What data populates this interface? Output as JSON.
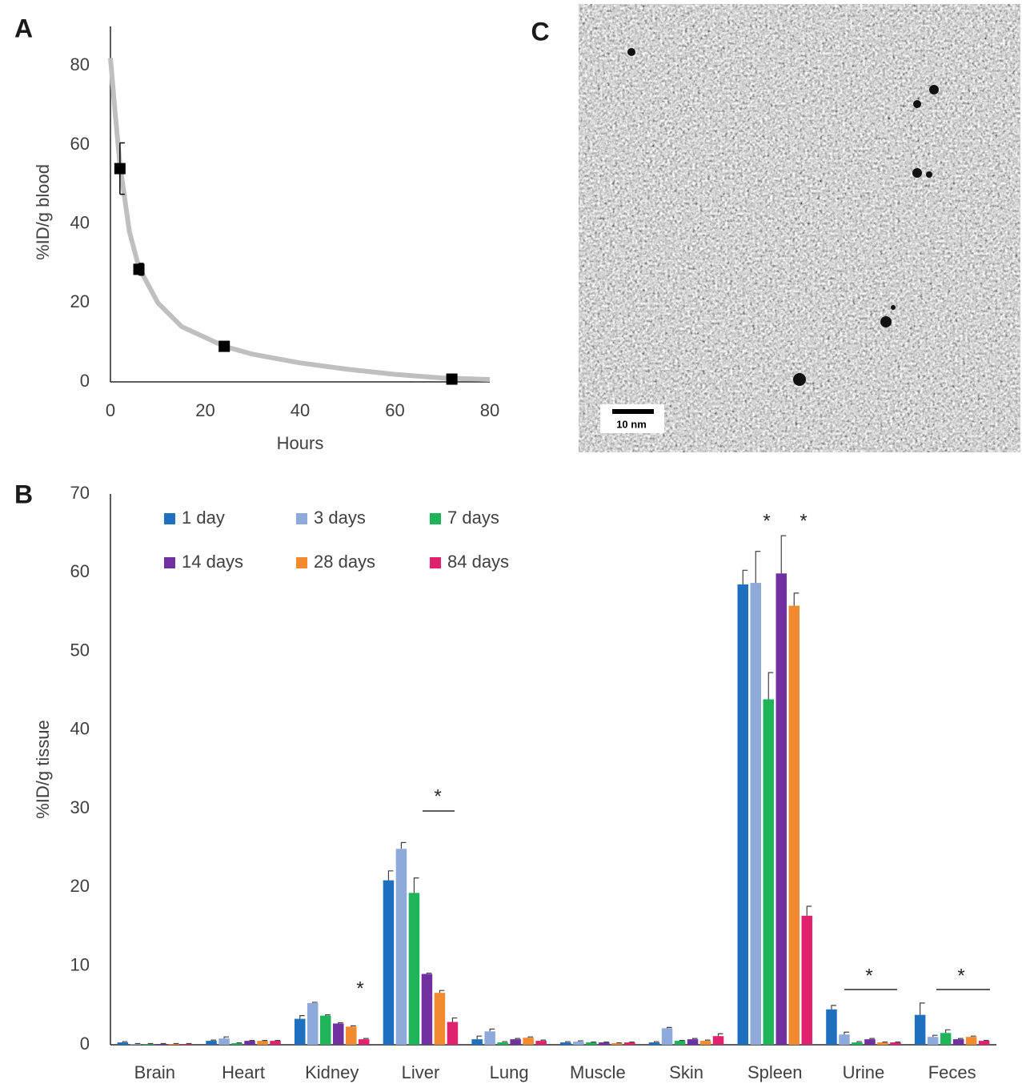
{
  "chart_data": [
    {
      "type": "scatter",
      "panel_label": "A",
      "xlabel": "Hours",
      "ylabel": "%ID/g  blood",
      "x": [
        2,
        6,
        24,
        72
      ],
      "values": [
        54,
        28.5,
        9,
        0.7
      ],
      "errors": [
        6.5,
        1.5,
        0.5,
        0.3
      ],
      "color": "#000000",
      "fit": {
        "x": [
          0,
          1,
          2,
          4,
          6,
          10,
          15,
          24,
          30,
          40,
          50,
          60,
          70,
          80
        ],
        "values": [
          82,
          68,
          55,
          38,
          29,
          20,
          14,
          9,
          7,
          4.8,
          3.2,
          1.9,
          1,
          0.6
        ],
        "color": "#bfbfbf"
      },
      "xlim": [
        0,
        80
      ],
      "xticks": [
        0,
        20,
        40,
        60,
        80
      ],
      "ylim": [
        0,
        90
      ],
      "yticks": [
        0,
        20,
        40,
        60,
        80
      ],
      "grid": false
    },
    {
      "type": "bar",
      "panel_label": "B",
      "ylabel": "%ID/g  tissue",
      "categories": [
        "Brain",
        "Heart",
        "Kidney",
        "Liver",
        "Lung",
        "Muscle",
        "Skin",
        "Spleen",
        "Urine",
        "Feces"
      ],
      "series": [
        {
          "name": "1 day",
          "color": "#1f6fbf",
          "values": [
            0.3,
            0.5,
            3.3,
            20.9,
            0.7,
            0.3,
            0.3,
            58.5,
            4.5,
            3.8
          ],
          "errors": [
            0.1,
            0.1,
            0.4,
            1.2,
            0.4,
            0.1,
            0.1,
            1.8,
            0.5,
            1.5
          ]
        },
        {
          "name": "3 days",
          "color": "#8eaadb",
          "values": [
            0.1,
            0.8,
            5.3,
            24.9,
            1.7,
            0.4,
            2.1,
            58.7,
            1.3,
            1.0
          ],
          "errors": [
            0.05,
            0.2,
            0.1,
            0.8,
            0.3,
            0.1,
            0.1,
            4,
            0.3,
            0.2
          ]
        },
        {
          "name": "7 days",
          "color": "#1fb35a",
          "values": [
            0.1,
            0.2,
            3.7,
            19.3,
            0.3,
            0.3,
            0.5,
            43.9,
            0.3,
            1.5
          ],
          "errors": [
            0.05,
            0.05,
            0.1,
            1.9,
            0.1,
            0.05,
            0.05,
            3.4,
            0.1,
            0.4
          ]
        },
        {
          "name": "14 days",
          "color": "#7030a0",
          "values": [
            0.1,
            0.5,
            2.7,
            9.0,
            0.7,
            0.3,
            0.7,
            59.9,
            0.7,
            0.7
          ],
          "errors": [
            0.05,
            0.05,
            0.1,
            0.1,
            0.1,
            0.05,
            0.1,
            4.8,
            0.1,
            0.1
          ]
        },
        {
          "name": "28 days",
          "color": "#f28a30",
          "values": [
            0.1,
            0.5,
            2.3,
            6.6,
            0.9,
            0.2,
            0.5,
            55.8,
            0.3,
            1.0
          ],
          "errors": [
            0.05,
            0.05,
            0.1,
            0.3,
            0.1,
            0.05,
            0.1,
            1.6,
            0.05,
            0.1
          ]
        },
        {
          "name": "84 days",
          "color": "#e0226e",
          "values": [
            0.1,
            0.5,
            0.7,
            2.9,
            0.5,
            0.3,
            1.1,
            16.4,
            0.3,
            0.5
          ],
          "errors": [
            0.05,
            0.05,
            0.1,
            0.5,
            0.1,
            0.05,
            0.3,
            1.2,
            0.05,
            0.05
          ]
        }
      ],
      "annotations": [
        "*",
        "*",
        "*",
        "*",
        "*",
        "*"
      ],
      "ylim": [
        0,
        70
      ],
      "yticks": [
        0,
        10,
        20,
        30,
        40,
        50,
        60,
        70
      ],
      "grid": false,
      "legend": "top-left"
    }
  ],
  "image_panel": {
    "panel_label": "C",
    "scale_bar_label": "10 nm"
  }
}
